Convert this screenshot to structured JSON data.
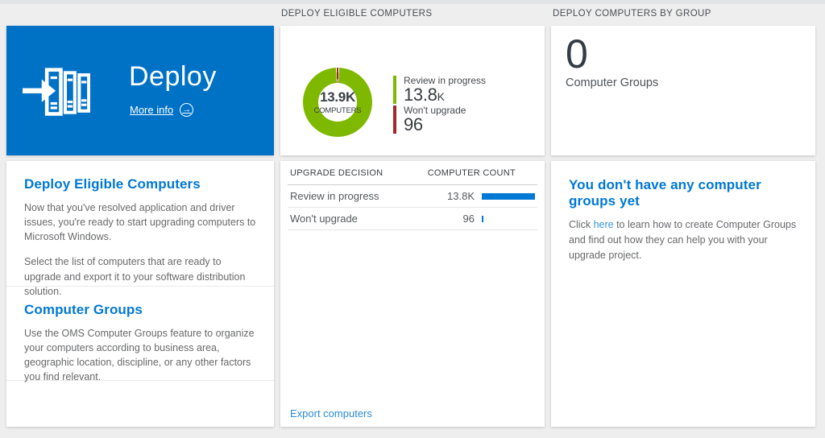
{
  "colors": {
    "tile_blue": "#0072c6",
    "heading_blue": "#0078d4",
    "link_blue": "#2b8bd6",
    "donut_green": "#7eb900",
    "donut_red": "#a4262c",
    "bar_blue": "#0078d4"
  },
  "headers": {
    "middle": "DEPLOY ELIGIBLE COMPUTERS",
    "right": "DEPLOY COMPUTERS BY GROUP"
  },
  "deploy_tile": {
    "title": "Deploy",
    "more_info": "More info",
    "arrow_glyph": "→"
  },
  "left_sections": [
    {
      "heading": "Deploy Eligible Computers",
      "paragraphs": [
        "Now that you've resolved application and driver issues, you're ready to start upgrading computers to Microsoft Windows.",
        "Select the list of computers that are ready to upgrade and export it to your software distribution solution."
      ]
    },
    {
      "heading": "Computer Groups",
      "paragraphs": [
        "Use the OMS Computer Groups feature to organize your computers according to business area, geographic location, discipline, or any other factors you find relevant."
      ]
    }
  ],
  "donut": {
    "center_value": "13.9K",
    "center_label": "COMPUTERS",
    "legend": [
      {
        "label": "Review in progress",
        "value": "13.8",
        "suffix": "K",
        "color": "#7eb900"
      },
      {
        "label": "Won't upgrade",
        "value": "96",
        "suffix": "",
        "color": "#a4262c"
      }
    ]
  },
  "table": {
    "col1": "UPGRADE DECISION",
    "col2": "COMPUTER COUNT",
    "rows": [
      {
        "label": "Review in progress",
        "value": "13.8K",
        "bar_pct": 100
      },
      {
        "label": "Won't upgrade",
        "value": "96",
        "bar_pct": 3
      }
    ],
    "export_label": "Export computers"
  },
  "groups": {
    "count": "0",
    "count_label": "Computer Groups",
    "empty_heading": "You don't have any computer groups yet",
    "empty_pre": "Click ",
    "empty_link": "here",
    "empty_post": " to learn how to create Computer Groups and find out how they can help you with your upgrade project."
  },
  "chart_data": [
    {
      "type": "pie",
      "subtype": "donut",
      "title": "DEPLOY ELIGIBLE COMPUTERS",
      "center_label": "13.9K COMPUTERS",
      "total": 13896,
      "slices": [
        {
          "label": "Review in progress",
          "value": 13800,
          "display": "13.8K",
          "color": "#7eb900"
        },
        {
          "label": "Won't upgrade",
          "value": 96,
          "display": "96",
          "color": "#a4262c"
        }
      ],
      "legend_position": "right"
    },
    {
      "type": "bar",
      "orientation": "horizontal",
      "title": "Upgrade decision computer counts",
      "columns": [
        "UPGRADE DECISION",
        "COMPUTER COUNT"
      ],
      "categories": [
        "Review in progress",
        "Won't upgrade"
      ],
      "values": [
        13800,
        96
      ],
      "display_values": [
        "13.8K",
        "96"
      ],
      "bar_color": "#0078d4",
      "xlim": [
        0,
        13800
      ]
    }
  ]
}
